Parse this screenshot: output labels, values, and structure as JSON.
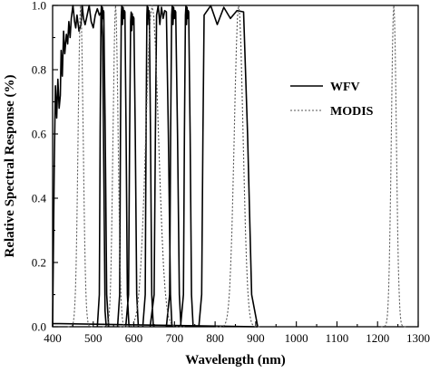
{
  "chart_data": {
    "type": "line",
    "xlabel": "Wavelength (nm)",
    "ylabel": "Relative Spectral Response (%)",
    "xlim": [
      400,
      1300
    ],
    "ylim": [
      0,
      1.0
    ],
    "x_ticks": [
      400,
      500,
      600,
      700,
      800,
      900,
      1000,
      1100,
      1200,
      1300
    ],
    "x_minor_step": 50,
    "y_ticks": [
      0.0,
      0.2,
      0.4,
      0.6,
      0.8,
      1.0
    ],
    "y_tick_labels": [
      "0.0",
      "0.2",
      "0.4",
      "0.6",
      "0.8",
      "1.0"
    ],
    "y_minor_step": 0.1,
    "legend_position": "right-center",
    "series": [
      {
        "name": "WFV",
        "style": "solid",
        "color": "#000000",
        "points": [
          [
            400,
            0.01
          ],
          [
            450,
            0.01
          ],
          [
            520,
            0.005
          ],
          [
            900,
            0.0
          ],
          [
            400,
            0.0
          ],
          [
            404,
            0.5
          ],
          [
            407,
            0.75
          ],
          [
            410,
            0.65
          ],
          [
            413,
            0.77
          ],
          [
            416,
            0.68
          ],
          [
            419,
            0.72
          ],
          [
            421,
            0.86
          ],
          [
            424,
            0.78
          ],
          [
            427,
            0.92
          ],
          [
            430,
            0.85
          ],
          [
            434,
            0.91
          ],
          [
            437,
            0.88
          ],
          [
            440,
            0.95
          ],
          [
            443,
            0.9
          ],
          [
            446,
            0.96
          ],
          [
            450,
            1.0
          ],
          [
            454,
            0.95
          ],
          [
            457,
            0.93
          ],
          [
            460,
            0.97
          ],
          [
            465,
            0.92
          ],
          [
            470,
            0.94
          ],
          [
            473,
            1.0
          ],
          [
            476,
            0.96
          ],
          [
            480,
            0.94
          ],
          [
            485,
            0.97
          ],
          [
            490,
            1.0
          ],
          [
            495,
            0.95
          ],
          [
            500,
            0.93
          ],
          [
            505,
            0.97
          ],
          [
            510,
            0.99
          ],
          [
            515,
            0.97
          ],
          [
            520,
            0.98
          ],
          [
            523,
            0.9
          ],
          [
            526,
            0.5
          ],
          [
            529,
            0.05
          ],
          [
            532,
            0.0
          ]
        ],
        "bands": [
          {
            "start": 445,
            "edge_left": 452,
            "peak_left": 458,
            "peak": 1.0,
            "peak_right": 475,
            "edge_right": 485,
            "end": 490
          },
          {
            "start": 510,
            "edge_left": 515,
            "peak_left": 519,
            "peak": 1.0,
            "peak_right": 526,
            "edge_right": 533,
            "end": 538
          },
          {
            "start": 560,
            "edge_left": 565,
            "peak_left": 569,
            "peak": 1.0,
            "peak_right": 578,
            "edge_right": 584,
            "end": 588
          },
          {
            "start": 580,
            "edge_left": 587,
            "peak_left": 592,
            "peak": 0.98,
            "peak_right": 600,
            "edge_right": 607,
            "end": 611
          },
          {
            "start": 622,
            "edge_left": 628,
            "peak_left": 632,
            "peak": 1.0,
            "peak_right": 638,
            "edge_right": 644,
            "end": 648
          },
          {
            "start": 640,
            "edge_left": 650,
            "peak_left": 656,
            "peak": 1.0,
            "peak_right": 680,
            "edge_right": 690,
            "end": 694
          },
          {
            "start": 680,
            "edge_left": 688,
            "peak_left": 693,
            "peak": 1.0,
            "peak_right": 703,
            "edge_right": 712,
            "end": 716
          },
          {
            "start": 715,
            "edge_left": 722,
            "peak_left": 727,
            "peak": 1.0,
            "peak_right": 735,
            "edge_right": 742,
            "end": 746
          },
          {
            "start": 760,
            "edge_left": 767,
            "peak_left": 773,
            "peak": 1.0,
            "peak_right": 870,
            "edge_right": 890,
            "end": 905
          }
        ]
      },
      {
        "name": "MODIS",
        "style": "dotted",
        "color": "#555555",
        "peaks": [
          {
            "center": 469,
            "width": 20,
            "peak": 1.0
          },
          {
            "center": 555,
            "width": 20,
            "peak": 1.0
          },
          {
            "center": 645,
            "width": 50,
            "peak": 1.0
          },
          {
            "center": 858,
            "width": 35,
            "peak": 1.0
          },
          {
            "center": 1240,
            "width": 20,
            "peak": 1.0
          }
        ]
      }
    ]
  }
}
